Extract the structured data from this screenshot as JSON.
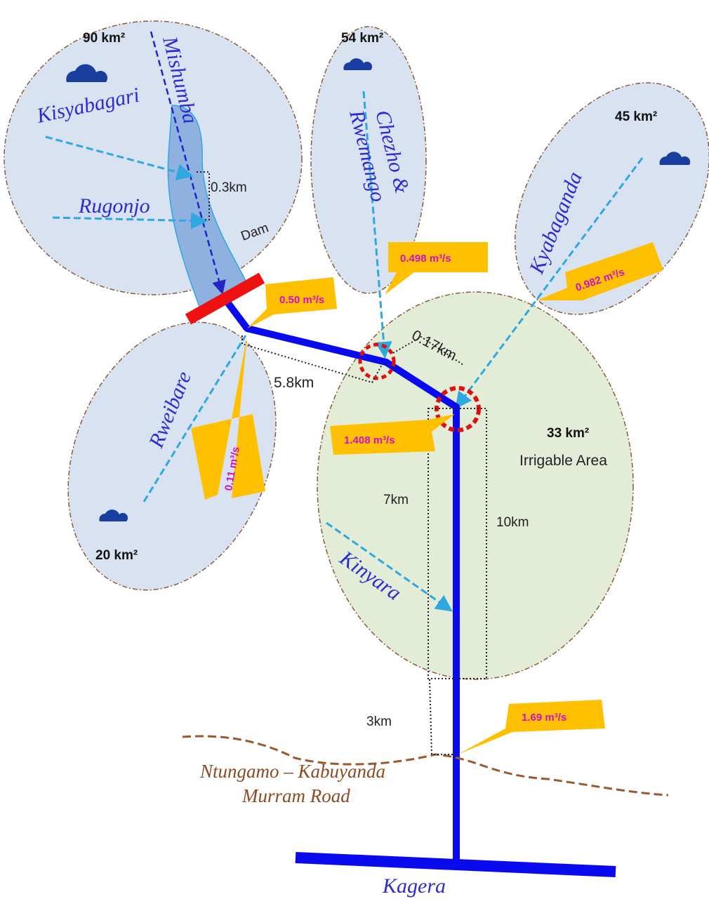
{
  "catchments": [
    {
      "area": "90 km²"
    },
    {
      "area": "54 km²"
    },
    {
      "area": "45 km²"
    },
    {
      "area": "20 km²"
    }
  ],
  "irrigable": {
    "area": "33 km²",
    "label": "Irrigable Area"
  },
  "rivers": [
    "Mishumba",
    "Kisyabagari",
    "Rugonjo",
    "Chezho &",
    "Rwemango",
    "Kyabaganda",
    "Rweibare",
    "Kinyara",
    "Kagera"
  ],
  "dam": "Dam",
  "distances": [
    "0.3km",
    "5.8km",
    "0.17km",
    "7km",
    "10km",
    "3km"
  ],
  "flows": [
    "0.50 m³/s",
    "0.498 m³/s",
    "0.982 m³/s",
    "0.11 m³/s",
    "1.408 m³/s",
    "1.69 m³/s"
  ],
  "road": [
    "Ntungamo – Kabuyanda",
    "Murram Road"
  ]
}
